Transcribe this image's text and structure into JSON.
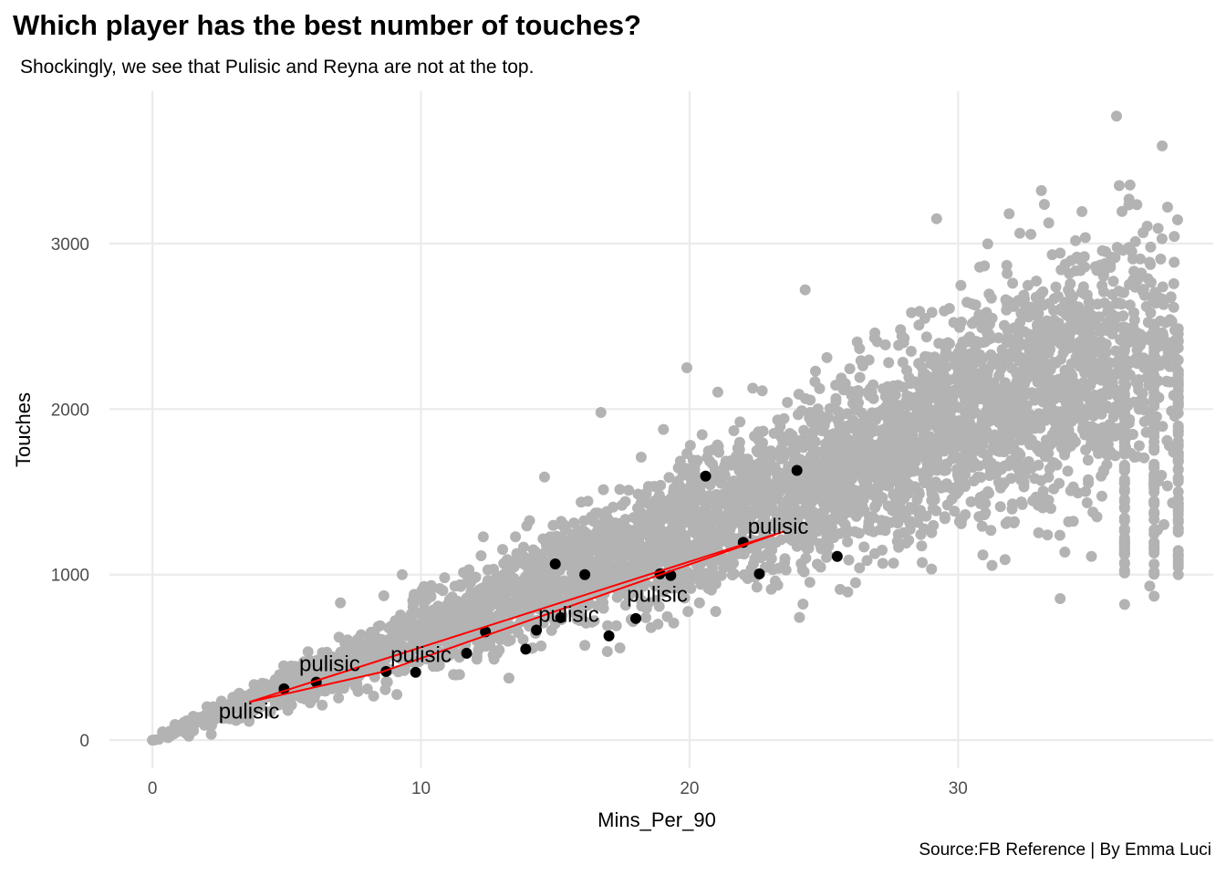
{
  "title": "Which player has the best number of touches?",
  "subtitle": "Shockingly, we see that Pulisic and Reyna are not at the top.",
  "caption": "Source:FB Reference | By Emma Luci",
  "colors": {
    "background_points": "#b3b3b3",
    "highlight_points": "#000000",
    "path": "#ff0000",
    "grid": "#ebebeb"
  },
  "chart_data": {
    "type": "scatter",
    "title": "Which player has the best number of touches?",
    "subtitle": "Shockingly, we see that Pulisic and Reyna are not at the top.",
    "xlabel": "Mins_Per_90",
    "ylabel": "Touches",
    "xlim": [
      -1.6,
      39.5
    ],
    "ylim": [
      -170,
      3920
    ],
    "x_ticks": [
      0,
      10,
      20,
      30
    ],
    "y_ticks": [
      0,
      1000,
      2000,
      3000
    ],
    "x_tick_labels": [
      "0",
      "10",
      "20",
      "30"
    ],
    "y_tick_labels": [
      "0",
      "1000",
      "2000",
      "3000"
    ],
    "grid": true,
    "legend": "none",
    "background_series": {
      "name": "",
      "color": "#b3b3b3",
      "approx_count": 4500,
      "description_of_trend": "roughly linear cloud, touches ≈ 60–75 per 90 minutes, spread widening with x",
      "notable_points": [
        {
          "x": 35.9,
          "y": 3770
        },
        {
          "x": 37.6,
          "y": 3590
        },
        {
          "x": 36.0,
          "y": 3350
        },
        {
          "x": 33.1,
          "y": 3320
        },
        {
          "x": 37.8,
          "y": 3220
        },
        {
          "x": 29.2,
          "y": 3150
        },
        {
          "x": 31.9,
          "y": 3180
        },
        {
          "x": 26.9,
          "y": 2460
        },
        {
          "x": 19.9,
          "y": 2250
        },
        {
          "x": 16.7,
          "y": 1980
        },
        {
          "x": 14.6,
          "y": 1590
        },
        {
          "x": 9.3,
          "y": 1000
        },
        {
          "x": 7.0,
          "y": 830
        },
        {
          "x": 36.2,
          "y": 820
        },
        {
          "x": 37.3,
          "y": 870
        },
        {
          "x": 33.8,
          "y": 855
        },
        {
          "x": 0.0,
          "y": 0
        }
      ]
    },
    "highlight_series": {
      "name": "",
      "color": "#000000",
      "points": [
        {
          "x": 4.9,
          "y": 310
        },
        {
          "x": 6.1,
          "y": 350
        },
        {
          "x": 8.7,
          "y": 415
        },
        {
          "x": 9.8,
          "y": 410
        },
        {
          "x": 11.7,
          "y": 525
        },
        {
          "x": 12.4,
          "y": 655
        },
        {
          "x": 13.9,
          "y": 550
        },
        {
          "x": 14.3,
          "y": 665
        },
        {
          "x": 15.2,
          "y": 740
        },
        {
          "x": 15.0,
          "y": 1065
        },
        {
          "x": 16.1,
          "y": 1000
        },
        {
          "x": 17.0,
          "y": 630
        },
        {
          "x": 18.0,
          "y": 735
        },
        {
          "x": 18.9,
          "y": 1005
        },
        {
          "x": 19.3,
          "y": 995
        },
        {
          "x": 20.6,
          "y": 1595
        },
        {
          "x": 22.0,
          "y": 1195
        },
        {
          "x": 22.6,
          "y": 1005
        },
        {
          "x": 24.0,
          "y": 1630
        },
        {
          "x": 25.5,
          "y": 1110
        }
      ]
    },
    "path_series": {
      "name": "",
      "color": "#ff0000",
      "points": [
        {
          "x": 3.6,
          "y": 230
        },
        {
          "x": 23.5,
          "y": 1260
        },
        {
          "x": 8.5,
          "y": 410
        },
        {
          "x": 3.6,
          "y": 230
        }
      ]
    },
    "annotations": [
      {
        "text": "pulisic",
        "x": 3.6,
        "y": 175
      },
      {
        "text": "pulisic",
        "x": 6.6,
        "y": 460
      },
      {
        "text": "pulisic",
        "x": 10.0,
        "y": 515
      },
      {
        "text": "pulisic",
        "x": 15.5,
        "y": 760
      },
      {
        "text": "pulisic",
        "x": 18.8,
        "y": 880
      },
      {
        "text": "pulisic",
        "x": 23.3,
        "y": 1290
      }
    ]
  }
}
